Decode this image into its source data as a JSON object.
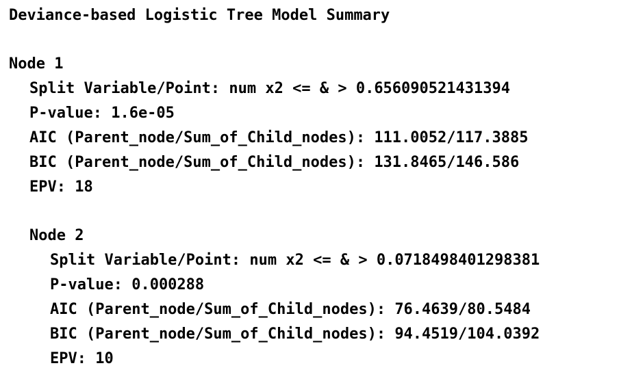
{
  "title": "Deviance-based Logistic Tree Model Summary",
  "nodes": [
    {
      "heading": "Node 1",
      "split": "Split Variable/Point: num x2 <= & > 0.656090521431394",
      "pvalue": "P-value: 1.6e-05",
      "aic": "AIC (Parent_node/Sum_of_Child_nodes): 111.0052/117.3885",
      "bic": "BIC (Parent_node/Sum_of_Child_nodes): 131.8465/146.586",
      "epv": "EPV: 18"
    },
    {
      "heading": "Node 2",
      "split": "Split Variable/Point: num x2 <= & > 0.0718498401298381",
      "pvalue": "P-value: 0.000288",
      "aic": "AIC (Parent_node/Sum_of_Child_nodes): 76.4639/80.5484",
      "bic": "BIC (Parent_node/Sum_of_Child_nodes): 94.4519/104.0392",
      "epv": "EPV: 10"
    }
  ]
}
